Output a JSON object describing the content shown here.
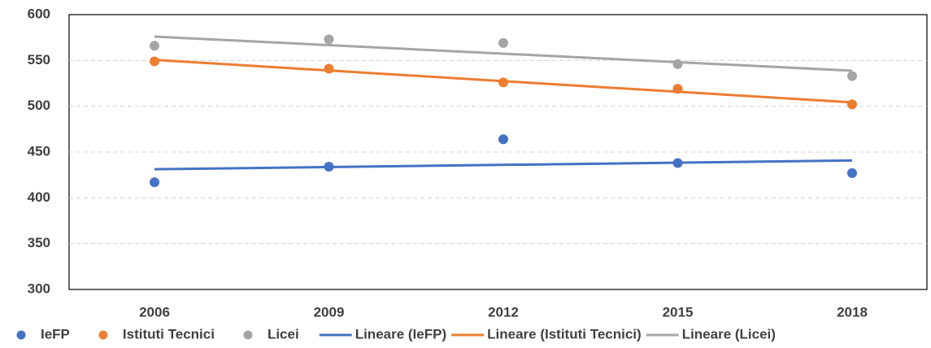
{
  "chart_data": {
    "type": "scatter",
    "categories": [
      "2006",
      "2009",
      "2012",
      "2015",
      "2018"
    ],
    "series": [
      {
        "name": "IeFP",
        "trend_name": "Lineare (IeFP)",
        "color": "#4472c4",
        "values": [
          417,
          434,
          464,
          438,
          427
        ]
      },
      {
        "name": "Istituti Tecnici",
        "trend_name": "Lineare (Istituti Tecnici)",
        "color": "#ed7d31",
        "values": [
          549,
          541,
          526,
          519,
          502
        ]
      },
      {
        "name": "Licei",
        "trend_name": "Lineare (Licei)",
        "color": "#a5a5a5",
        "values": [
          566,
          573,
          569,
          546,
          533
        ]
      }
    ],
    "ylim": [
      300,
      600
    ],
    "yticks": [
      300,
      350,
      400,
      450,
      500,
      550,
      600
    ],
    "grid": true,
    "trendline": "linear",
    "legend": "bottom"
  }
}
